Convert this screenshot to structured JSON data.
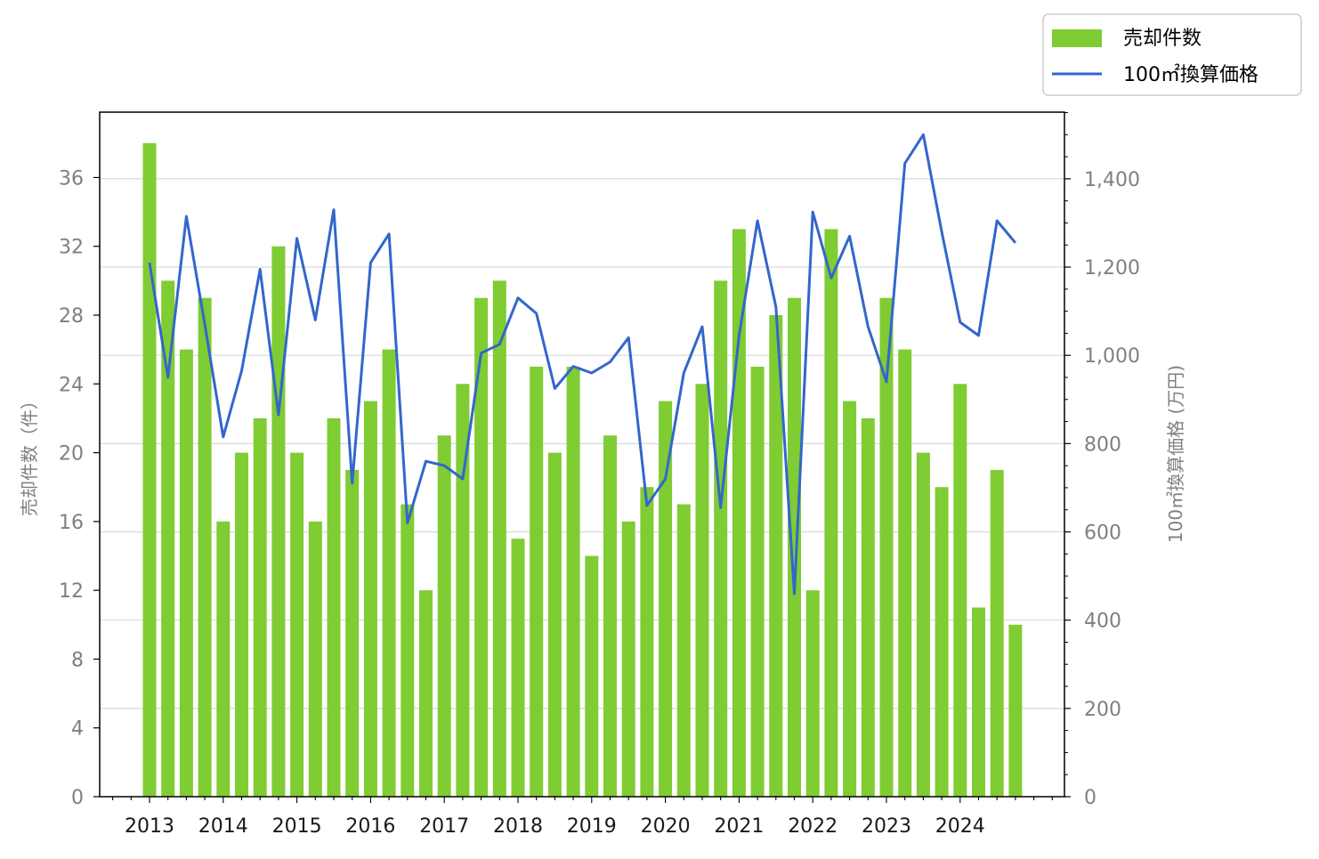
{
  "chart_data": {
    "type": "bar",
    "secondary_type": "line",
    "title": "",
    "x_tick_labels": [
      "2013",
      "2014",
      "2015",
      "2016",
      "2017",
      "2018",
      "2019",
      "2020",
      "2021",
      "2022",
      "2023",
      "2024"
    ],
    "quarters_per_year": 4,
    "start_year": 2013,
    "ylabel_left": "売却件数（件）",
    "ylabel_right": "100㎡換算価格 (万円)",
    "ylim_left": [
      0,
      39.8
    ],
    "ylim_right": [
      0,
      1551
    ],
    "yticks_left": [
      0,
      4,
      8,
      12,
      16,
      20,
      24,
      28,
      32,
      36
    ],
    "yticks_right": [
      0,
      200,
      400,
      600,
      800,
      1000,
      1200,
      1400
    ],
    "yticks_right_labels": [
      "0",
      "200",
      "400",
      "600",
      "800",
      "1,000",
      "1,200",
      "1,400"
    ],
    "grid": "horizontal lines at right-axis ticks",
    "legend_position": "top-right, outside plot",
    "series": [
      {
        "name": "売却件数",
        "type": "bar",
        "axis": "left",
        "color": "#7fcc33",
        "values": [
          38,
          30,
          26,
          29,
          16,
          20,
          22,
          32,
          20,
          16,
          22,
          19,
          23,
          26,
          17,
          12,
          21,
          24,
          29,
          30,
          15,
          25,
          20,
          25,
          14,
          21,
          16,
          18,
          23,
          17,
          24,
          30,
          33,
          25,
          28,
          29,
          12,
          33,
          23,
          22,
          29,
          26,
          20,
          18,
          24,
          11,
          19,
          10
        ]
      },
      {
        "name": "100㎡換算価格",
        "type": "line",
        "axis": "right",
        "color": "#3366cc",
        "values": [
          1210,
          950,
          1315,
          1070,
          815,
          965,
          1195,
          865,
          1265,
          1080,
          1330,
          710,
          1210,
          1275,
          620,
          760,
          750,
          720,
          1005,
          1025,
          1130,
          1095,
          925,
          975,
          960,
          985,
          1040,
          660,
          720,
          960,
          1065,
          655,
          1045,
          1305,
          1110,
          460,
          1325,
          1175,
          1270,
          1065,
          940,
          1435,
          1500,
          1280,
          1075,
          1045,
          1305,
          1255
        ]
      }
    ]
  }
}
